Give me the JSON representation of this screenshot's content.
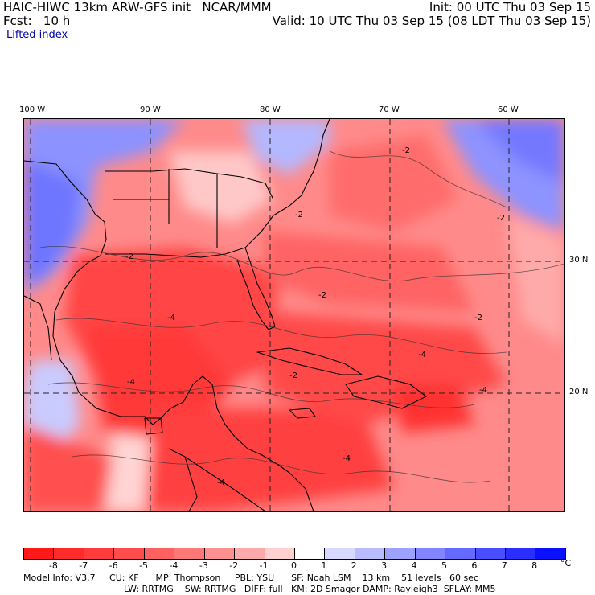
{
  "header": {
    "model_title": "HAIC-HIWC 13km ARW-GFS init   NCAR/MMM",
    "init": "Init: 00 UTC Thu 03 Sep 15",
    "forecast": "Fcst:   10 h",
    "valid": "Valid: 10 UTC Thu 03 Sep 15 (08 LDT Thu 03 Sep 15)",
    "field": "Lifted index"
  },
  "axes": {
    "longitudes": [
      "100 W",
      "90 W",
      "80 W",
      "70 W",
      "60 W"
    ],
    "latitudes": [
      "30 N",
      "20 N"
    ]
  },
  "contour_labels": [
    "-2",
    "-2",
    "-2",
    "-2",
    "-2",
    "-2",
    "-2",
    "-4",
    "-4",
    "-4",
    "-4",
    "-4",
    "-4"
  ],
  "colorbar": {
    "unit": "°C",
    "ticks": [
      "-8",
      "-7",
      "-6",
      "-5",
      "-4",
      "-3",
      "-2",
      "-1",
      "0",
      "1",
      "2",
      "3",
      "4",
      "5",
      "6",
      "7",
      "8"
    ],
    "colors": [
      "#ff1a1a",
      "#ff2a2a",
      "#ff3b3b",
      "#ff4d4d",
      "#ff6161",
      "#ff7878",
      "#ff9090",
      "#ffaaaa",
      "#ffd0d0",
      "#ffffff",
      "#d7d9ff",
      "#b9bcff",
      "#9da1ff",
      "#8185ff",
      "#6469ff",
      "#484dff",
      "#2a2fff",
      "#0b10ff"
    ]
  },
  "footer": {
    "line1": "Model Info: V3.7     CU: KF      MP: Thompson     PBL: YSU      SF: Noah LSM    13 km    51 levels   60 sec",
    "line2": "LW: RRTMG    SW: RRTMG   DIFF: full   KM: 2D Smagor DAMP: Rayleigh3  SFLAY: MM5"
  }
}
